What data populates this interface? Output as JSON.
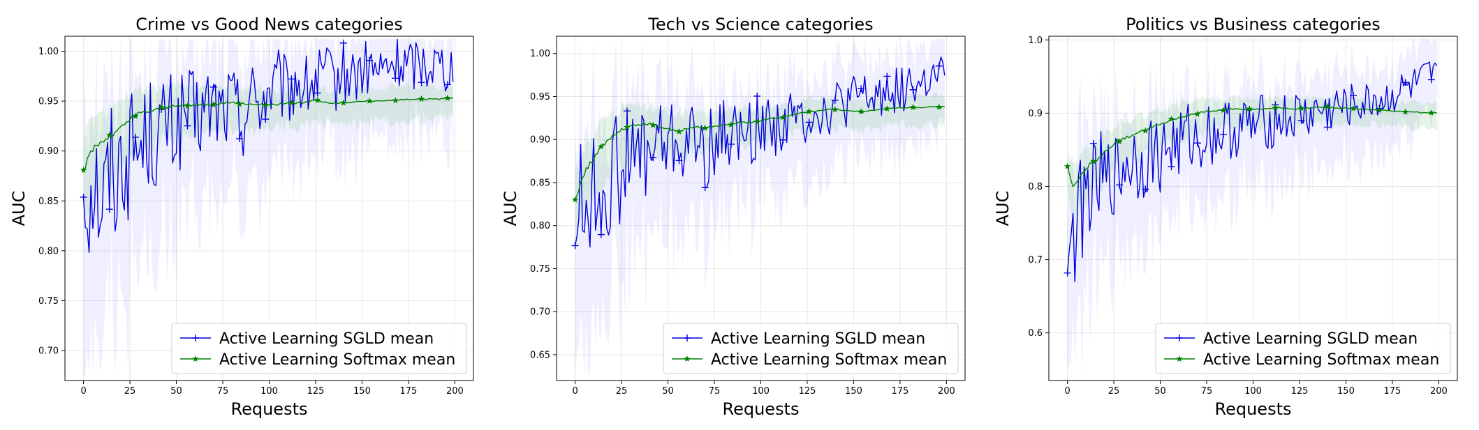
{
  "chart_data": [
    {
      "type": "line",
      "title": "Crime vs Good News categories",
      "xlabel": "Requests",
      "ylabel": "AUC",
      "xlim": [
        -10,
        210
      ],
      "ylim": [
        0.67,
        1.015
      ],
      "xticks": [
        0,
        25,
        50,
        75,
        100,
        125,
        150,
        175,
        200
      ],
      "yticks": [
        0.7,
        0.75,
        0.8,
        0.85,
        0.9,
        0.95,
        1.0
      ],
      "ytick_decimals": 2,
      "grid": true,
      "legend": "lower-right",
      "series": [
        {
          "name": "Active Learning SGLD mean",
          "color": "#0000dd",
          "marker": "plus",
          "band_color": "#8080ff",
          "x": [
            0,
            3,
            6,
            9,
            12,
            15,
            18,
            21,
            24,
            27,
            30,
            35,
            40,
            45,
            50,
            55,
            60,
            65,
            70,
            75,
            80,
            85,
            90,
            95,
            100,
            105,
            110,
            115,
            120,
            125,
            130,
            135,
            140,
            145,
            150,
            155,
            160,
            165,
            170,
            175,
            180,
            185,
            190,
            195,
            199
          ],
          "y": [
            0.867,
            0.86,
            0.88,
            0.85,
            0.86,
            0.89,
            0.87,
            0.9,
            0.89,
            0.91,
            0.9,
            0.92,
            0.91,
            0.93,
            0.92,
            0.94,
            0.93,
            0.94,
            0.945,
            0.94,
            0.95,
            0.93,
            0.955,
            0.95,
            0.96,
            0.965,
            0.958,
            0.97,
            0.962,
            0.97,
            0.975,
            0.968,
            0.978,
            0.975,
            0.98,
            0.982,
            0.978,
            0.985,
            0.988,
            0.985,
            0.99,
            0.988,
            0.99,
            0.985,
            0.99
          ]
        },
        {
          "name": "Active Learning Softmax mean",
          "color": "#008000",
          "marker": "star",
          "band_color": "#88cc88",
          "x": [
            0,
            3,
            6,
            9,
            12,
            15,
            18,
            21,
            24,
            27,
            30,
            35,
            40,
            45,
            50,
            55,
            60,
            65,
            70,
            75,
            80,
            85,
            90,
            95,
            100,
            105,
            110,
            115,
            120,
            125,
            130,
            135,
            140,
            145,
            150,
            155,
            160,
            165,
            170,
            175,
            180,
            185,
            190,
            195,
            199
          ],
          "y": [
            0.88,
            0.895,
            0.905,
            0.908,
            0.912,
            0.915,
            0.92,
            0.925,
            0.93,
            0.935,
            0.938,
            0.94,
            0.942,
            0.944,
            0.945,
            0.946,
            0.946,
            0.947,
            0.947,
            0.948,
            0.948,
            0.948,
            0.947,
            0.947,
            0.946,
            0.947,
            0.948,
            0.948,
            0.949,
            0.951,
            0.949,
            0.948,
            0.948,
            0.949,
            0.95,
            0.95,
            0.95,
            0.951,
            0.951,
            0.952,
            0.952,
            0.952,
            0.952,
            0.953,
            0.953
          ]
        }
      ]
    },
    {
      "type": "line",
      "title": "Tech vs Science categories",
      "xlabel": "Requests",
      "ylabel": "AUC",
      "xlim": [
        -10,
        210
      ],
      "ylim": [
        0.62,
        1.02
      ],
      "xticks": [
        0,
        25,
        50,
        75,
        100,
        125,
        150,
        175,
        200
      ],
      "yticks": [
        0.65,
        0.7,
        0.75,
        0.8,
        0.85,
        0.9,
        0.95,
        1.0
      ],
      "ytick_decimals": 2,
      "grid": true,
      "legend": "lower-right",
      "series": [
        {
          "name": "Active Learning SGLD mean",
          "color": "#0000dd",
          "marker": "plus",
          "band_color": "#8080ff",
          "x": [
            0,
            3,
            6,
            9,
            12,
            15,
            18,
            21,
            24,
            27,
            30,
            35,
            40,
            45,
            50,
            55,
            60,
            65,
            70,
            75,
            80,
            85,
            90,
            95,
            100,
            105,
            110,
            115,
            120,
            125,
            130,
            135,
            140,
            145,
            150,
            155,
            160,
            165,
            170,
            175,
            180,
            185,
            190,
            195,
            199
          ],
          "y": [
            0.81,
            0.83,
            0.82,
            0.84,
            0.83,
            0.85,
            0.84,
            0.87,
            0.86,
            0.88,
            0.87,
            0.89,
            0.88,
            0.9,
            0.89,
            0.9,
            0.89,
            0.9,
            0.88,
            0.9,
            0.905,
            0.91,
            0.9,
            0.91,
            0.915,
            0.92,
            0.915,
            0.925,
            0.92,
            0.93,
            0.935,
            0.93,
            0.94,
            0.94,
            0.945,
            0.95,
            0.945,
            0.955,
            0.96,
            0.955,
            0.965,
            0.96,
            0.968,
            0.97,
            0.975
          ]
        },
        {
          "name": "Active Learning Softmax mean",
          "color": "#008000",
          "marker": "star",
          "band_color": "#88cc88",
          "x": [
            0,
            3,
            6,
            9,
            12,
            15,
            18,
            21,
            24,
            27,
            30,
            35,
            40,
            45,
            50,
            55,
            60,
            65,
            70,
            75,
            80,
            85,
            90,
            95,
            100,
            105,
            110,
            115,
            120,
            125,
            130,
            135,
            140,
            145,
            150,
            155,
            160,
            165,
            170,
            175,
            180,
            185,
            190,
            195,
            199
          ],
          "y": [
            0.83,
            0.85,
            0.865,
            0.875,
            0.885,
            0.893,
            0.9,
            0.905,
            0.91,
            0.913,
            0.915,
            0.917,
            0.918,
            0.915,
            0.912,
            0.91,
            0.912,
            0.915,
            0.913,
            0.915,
            0.918,
            0.918,
            0.92,
            0.92,
            0.922,
            0.925,
            0.925,
            0.928,
            0.93,
            0.932,
            0.933,
            0.935,
            0.935,
            0.934,
            0.933,
            0.932,
            0.934,
            0.935,
            0.936,
            0.937,
            0.937,
            0.937,
            0.938,
            0.938,
            0.938
          ]
        }
      ]
    },
    {
      "type": "line",
      "title": "Politics vs Business categories",
      "xlabel": "Requests",
      "ylabel": "AUC",
      "xlim": [
        -10,
        210
      ],
      "ylim": [
        0.535,
        1.005
      ],
      "xticks": [
        0,
        25,
        50,
        75,
        100,
        125,
        150,
        175,
        200
      ],
      "yticks": [
        0.6,
        0.7,
        0.8,
        0.9,
        1.0
      ],
      "ytick_decimals": 1,
      "grid": true,
      "legend": "lower-right",
      "series": [
        {
          "name": "Active Learning SGLD mean",
          "color": "#0000dd",
          "marker": "plus",
          "band_color": "#8080ff",
          "x": [
            0,
            3,
            6,
            9,
            12,
            15,
            18,
            21,
            24,
            27,
            30,
            35,
            40,
            45,
            50,
            55,
            60,
            65,
            70,
            75,
            80,
            85,
            90,
            95,
            100,
            105,
            110,
            115,
            120,
            125,
            130,
            135,
            140,
            145,
            150,
            155,
            160,
            165,
            170,
            175,
            180,
            185,
            190,
            195,
            199
          ],
          "y": [
            0.735,
            0.72,
            0.76,
            0.78,
            0.8,
            0.79,
            0.81,
            0.8,
            0.82,
            0.81,
            0.83,
            0.84,
            0.83,
            0.85,
            0.84,
            0.86,
            0.855,
            0.87,
            0.86,
            0.875,
            0.87,
            0.88,
            0.875,
            0.885,
            0.88,
            0.89,
            0.885,
            0.895,
            0.89,
            0.9,
            0.895,
            0.905,
            0.9,
            0.91,
            0.905,
            0.915,
            0.91,
            0.92,
            0.915,
            0.925,
            0.93,
            0.935,
            0.94,
            0.95,
            0.945
          ]
        },
        {
          "name": "Active Learning Softmax mean",
          "color": "#008000",
          "marker": "star",
          "band_color": "#88cc88",
          "x": [
            0,
            3,
            6,
            9,
            12,
            15,
            18,
            21,
            24,
            27,
            30,
            35,
            40,
            45,
            50,
            55,
            60,
            65,
            70,
            75,
            80,
            85,
            90,
            95,
            100,
            105,
            110,
            115,
            120,
            125,
            130,
            135,
            140,
            145,
            150,
            155,
            160,
            165,
            170,
            175,
            180,
            185,
            190,
            195,
            199
          ],
          "y": [
            0.828,
            0.8,
            0.81,
            0.82,
            0.83,
            0.835,
            0.84,
            0.85,
            0.855,
            0.862,
            0.865,
            0.87,
            0.875,
            0.88,
            0.885,
            0.89,
            0.893,
            0.897,
            0.9,
            0.902,
            0.903,
            0.905,
            0.906,
            0.905,
            0.905,
            0.906,
            0.907,
            0.907,
            0.906,
            0.906,
            0.907,
            0.908,
            0.908,
            0.907,
            0.907,
            0.906,
            0.905,
            0.905,
            0.904,
            0.903,
            0.902,
            0.902,
            0.901,
            0.9,
            0.9
          ]
        }
      ]
    }
  ]
}
